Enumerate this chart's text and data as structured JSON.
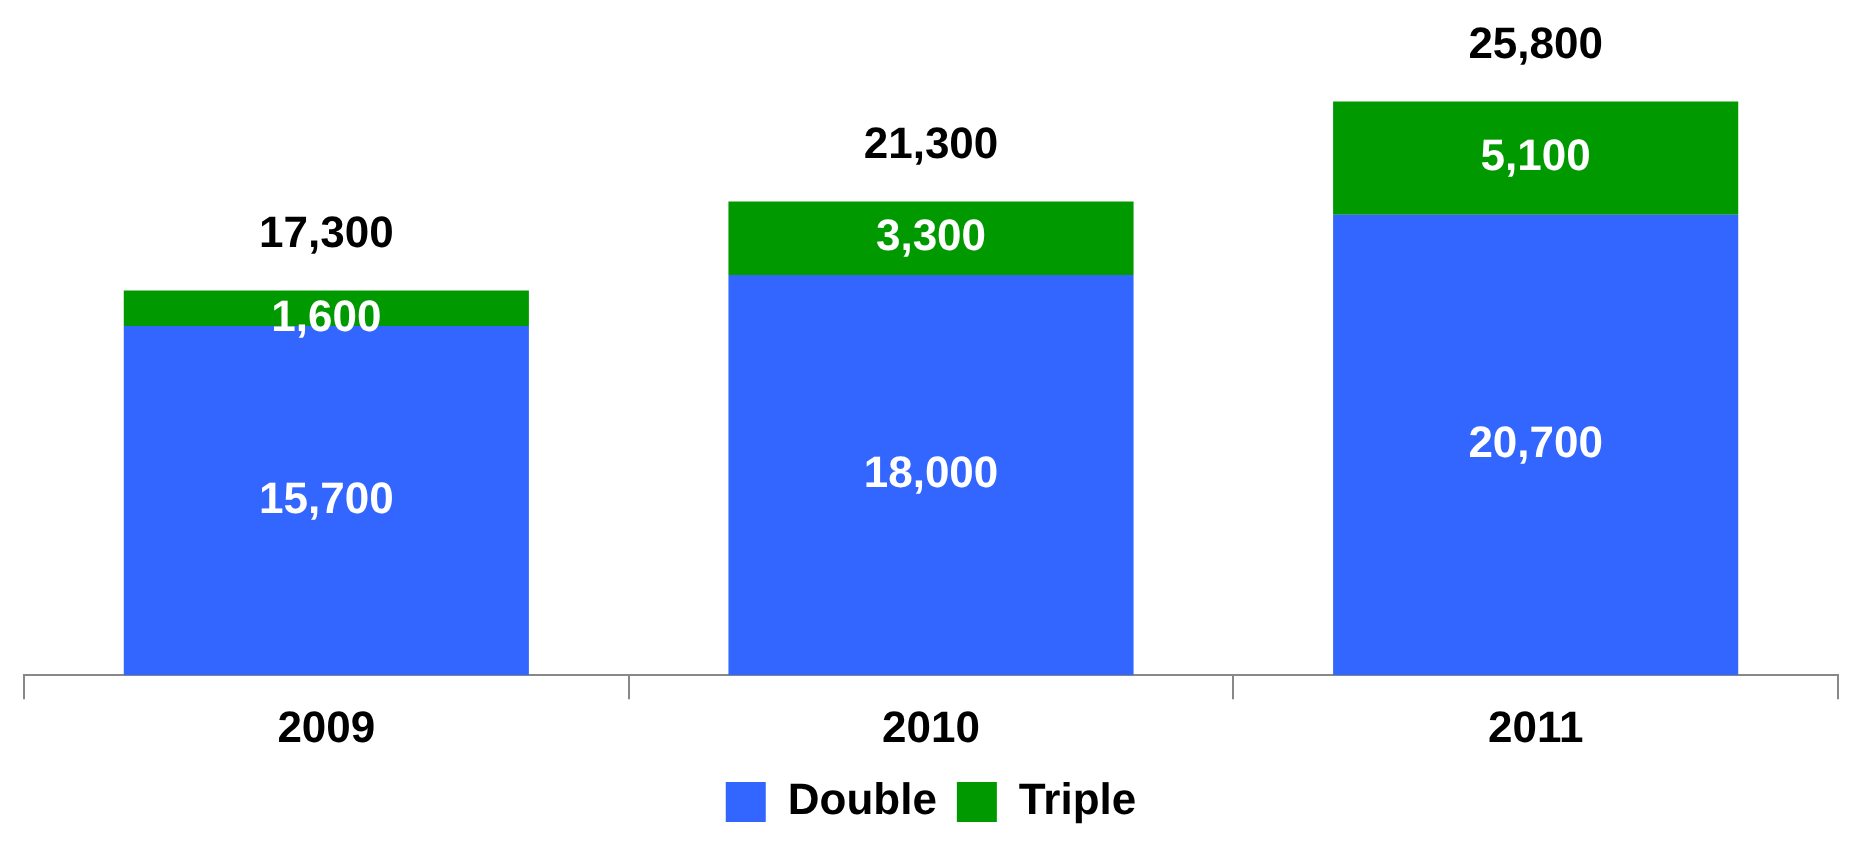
{
  "chart_data": {
    "type": "bar",
    "stacked": true,
    "categories": [
      "2009",
      "2010",
      "2011"
    ],
    "series": [
      {
        "name": "Double",
        "color": "#3366ff",
        "values": [
          15700,
          18000,
          20700
        ],
        "value_labels": [
          "15,700",
          "18,000",
          "20,700"
        ]
      },
      {
        "name": "Triple",
        "color": "#009900",
        "values": [
          1600,
          3300,
          5100
        ],
        "value_labels": [
          "1,600",
          "3,300",
          "5,100"
        ]
      }
    ],
    "totals": [
      "17,300",
      "21,300",
      "25,800"
    ],
    "legend": "bottom",
    "grid": false
  }
}
